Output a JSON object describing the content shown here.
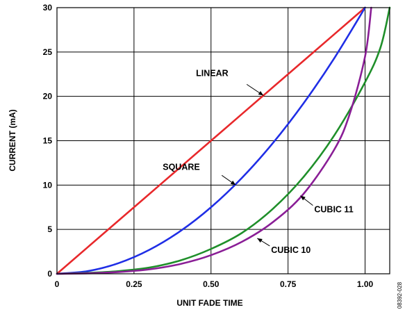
{
  "chart_data": {
    "type": "line",
    "xlabel": "UNIT FADE TIME",
    "ylabel": "CURRENT (mA)",
    "xlim": [
      0,
      1.08
    ],
    "ylim": [
      0,
      30
    ],
    "x_ticks": [
      0,
      0.25,
      0.5,
      0.75,
      1.0
    ],
    "x_tick_labels": [
      "0",
      "0.25",
      "0.50",
      "0.75",
      "1.00"
    ],
    "y_ticks": [
      0,
      5,
      10,
      15,
      20,
      25,
      30
    ],
    "y_tick_labels": [
      "0",
      "5",
      "10",
      "15",
      "20",
      "25",
      "30"
    ],
    "grid": true,
    "series": [
      {
        "name": "LINEAR",
        "color": "#e8282b",
        "x": [
          0,
          0.1,
          0.2,
          0.3,
          0.4,
          0.5,
          0.6,
          0.7,
          0.8,
          0.9,
          1.0
        ],
        "y": [
          0,
          3,
          6,
          9,
          12,
          15,
          18,
          21,
          24,
          27,
          30
        ]
      },
      {
        "name": "SQUARE",
        "color": "#1f2ee6",
        "x": [
          0,
          0.1,
          0.2,
          0.3,
          0.4,
          0.5,
          0.6,
          0.7,
          0.8,
          0.9,
          1.0
        ],
        "y": [
          0,
          0.3,
          1.2,
          2.7,
          4.8,
          7.5,
          10.8,
          14.7,
          19.2,
          24.3,
          30
        ]
      },
      {
        "name": "CUBIC 11",
        "color": "#1f8f2a",
        "x": [
          0,
          0.1,
          0.2,
          0.3,
          0.4,
          0.5,
          0.6,
          0.7,
          0.8,
          0.9,
          1.0,
          1.05,
          1.08
        ],
        "y": [
          0,
          0.1,
          0.3,
          0.7,
          1.5,
          2.8,
          4.6,
          7.3,
          10.9,
          15.6,
          21.6,
          25.5,
          30
        ]
      },
      {
        "name": "CUBIC 10",
        "color": "#8a1e96",
        "x": [
          0,
          0.1,
          0.2,
          0.3,
          0.4,
          0.5,
          0.6,
          0.7,
          0.8,
          0.9,
          0.95,
          1.0,
          1.02
        ],
        "y": [
          0,
          0.05,
          0.2,
          0.5,
          1.1,
          2.1,
          3.6,
          5.8,
          9.0,
          14.0,
          18.0,
          24.5,
          30
        ]
      }
    ],
    "annotations": [
      {
        "text": "LINEAR",
        "series": "LINEAR",
        "point": [
          0.67,
          20.1
        ]
      },
      {
        "text": "SQUARE",
        "series": "SQUARE",
        "point": [
          0.58,
          10.0
        ]
      },
      {
        "text": "CUBIC 11",
        "series": "CUBIC 11",
        "point": [
          0.79,
          8.8
        ]
      },
      {
        "text": "CUBIC 10",
        "series": "CUBIC 10",
        "point": [
          0.65,
          4.0
        ]
      }
    ],
    "figure_id": "08392-028"
  }
}
